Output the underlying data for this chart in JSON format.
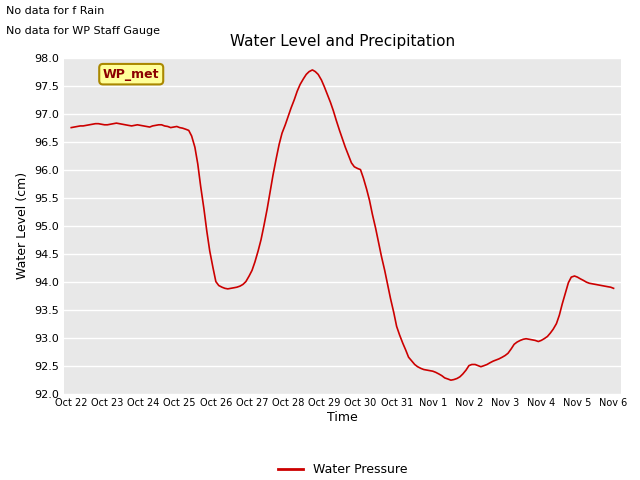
{
  "title": "Water Level and Precipitation",
  "ylabel": "Water Level (cm)",
  "xlabel": "Time",
  "ylim": [
    92.0,
    98.0
  ],
  "yticks": [
    92.0,
    92.5,
    93.0,
    93.5,
    94.0,
    94.5,
    95.0,
    95.5,
    96.0,
    96.5,
    97.0,
    97.5,
    98.0
  ],
  "xtick_labels": [
    "Oct 22",
    "Oct 23",
    "Oct 24",
    "Oct 25",
    "Oct 26",
    "Oct 27",
    "Oct 28",
    "Oct 29",
    "Oct 30",
    "Oct 31",
    "Nov 1",
    "Nov 2",
    "Nov 3",
    "Nov 4",
    "Nov 5",
    "Nov 6"
  ],
  "line_color": "#cc0000",
  "line_width": 1.2,
  "plot_bg_color": "#e8e8e8",
  "fig_bg_color": "#ffffff",
  "grid_color": "#ffffff",
  "legend_label": "Water Pressure",
  "note1": "No data for f Rain",
  "note2": "No data for WP Staff Gauge",
  "wp_met_label": "WP_met",
  "wp_met_bg": "#ffff99",
  "wp_met_border": "#aa8800",
  "x_days": [
    0.0,
    0.08,
    0.17,
    0.25,
    0.33,
    0.42,
    0.5,
    0.58,
    0.67,
    0.75,
    0.83,
    0.92,
    1.0,
    1.08,
    1.17,
    1.25,
    1.33,
    1.42,
    1.5,
    1.58,
    1.67,
    1.75,
    1.83,
    1.92,
    2.0,
    2.08,
    2.17,
    2.25,
    2.33,
    2.42,
    2.5,
    2.58,
    2.67,
    2.75,
    2.83,
    2.92,
    3.0,
    3.08,
    3.17,
    3.25,
    3.33,
    3.42,
    3.5,
    3.58,
    3.67,
    3.75,
    3.83,
    3.92,
    4.0,
    4.08,
    4.17,
    4.25,
    4.33,
    4.42,
    4.5,
    4.58,
    4.67,
    4.75,
    4.83,
    4.92,
    5.0,
    5.08,
    5.17,
    5.25,
    5.33,
    5.42,
    5.5,
    5.58,
    5.67,
    5.75,
    5.83,
    5.92,
    6.0,
    6.08,
    6.17,
    6.25,
    6.33,
    6.42,
    6.5,
    6.58,
    6.67,
    6.75,
    6.83,
    6.92,
    7.0,
    7.08,
    7.17,
    7.25,
    7.33,
    7.42,
    7.5,
    7.58,
    7.67,
    7.75,
    7.83,
    7.92,
    8.0,
    8.08,
    8.17,
    8.25,
    8.33,
    8.42,
    8.5,
    8.58,
    8.67,
    8.75,
    8.83,
    8.92,
    9.0,
    9.08,
    9.17,
    9.25,
    9.33,
    9.42,
    9.5,
    9.58,
    9.67,
    9.75,
    9.83,
    9.92,
    10.0,
    10.08,
    10.17,
    10.25,
    10.33,
    10.42,
    10.5,
    10.58,
    10.67,
    10.75,
    10.83,
    10.92,
    11.0,
    11.08,
    11.17,
    11.25,
    11.33,
    11.42,
    11.5,
    11.58,
    11.67,
    11.75,
    11.83,
    11.92,
    12.0,
    12.08,
    12.17,
    12.25,
    12.33,
    12.42,
    12.5,
    12.58,
    12.67,
    12.75,
    12.83,
    12.92,
    13.0,
    13.08,
    13.17,
    13.25,
    13.33,
    13.42,
    13.5,
    13.58,
    13.67,
    13.75,
    13.83,
    13.92,
    14.0,
    14.08,
    14.17,
    14.25,
    14.33,
    14.42,
    14.5,
    14.58,
    14.67,
    14.75,
    14.83,
    14.92,
    15.0
  ],
  "y_vals": [
    96.75,
    96.76,
    96.77,
    96.78,
    96.78,
    96.79,
    96.8,
    96.81,
    96.82,
    96.82,
    96.81,
    96.8,
    96.8,
    96.81,
    96.82,
    96.83,
    96.82,
    96.81,
    96.8,
    96.79,
    96.78,
    96.79,
    96.8,
    96.79,
    96.78,
    96.77,
    96.76,
    96.78,
    96.79,
    96.8,
    96.8,
    96.78,
    96.77,
    96.75,
    96.76,
    96.77,
    96.75,
    96.74,
    96.72,
    96.7,
    96.6,
    96.4,
    96.1,
    95.7,
    95.3,
    94.9,
    94.55,
    94.25,
    94.0,
    93.93,
    93.9,
    93.88,
    93.87,
    93.88,
    93.89,
    93.9,
    93.92,
    93.95,
    94.0,
    94.1,
    94.2,
    94.35,
    94.55,
    94.75,
    95.0,
    95.3,
    95.6,
    95.9,
    96.2,
    96.45,
    96.65,
    96.8,
    96.95,
    97.1,
    97.25,
    97.4,
    97.52,
    97.62,
    97.7,
    97.75,
    97.78,
    97.75,
    97.7,
    97.6,
    97.48,
    97.35,
    97.2,
    97.05,
    96.88,
    96.7,
    96.55,
    96.4,
    96.25,
    96.12,
    96.05,
    96.02,
    96.0,
    95.85,
    95.65,
    95.45,
    95.2,
    94.95,
    94.7,
    94.45,
    94.2,
    93.95,
    93.7,
    93.45,
    93.2,
    93.05,
    92.9,
    92.78,
    92.65,
    92.58,
    92.52,
    92.48,
    92.45,
    92.43,
    92.42,
    92.41,
    92.4,
    92.38,
    92.35,
    92.32,
    92.28,
    92.26,
    92.24,
    92.25,
    92.27,
    92.3,
    92.35,
    92.42,
    92.5,
    92.52,
    92.52,
    92.5,
    92.48,
    92.5,
    92.52,
    92.55,
    92.58,
    92.6,
    92.62,
    92.65,
    92.68,
    92.72,
    92.8,
    92.88,
    92.92,
    92.95,
    92.97,
    92.98,
    92.97,
    92.96,
    92.95,
    92.93,
    92.95,
    92.98,
    93.02,
    93.08,
    93.15,
    93.25,
    93.4,
    93.6,
    93.8,
    93.98,
    94.08,
    94.1,
    94.08,
    94.05,
    94.02,
    93.99,
    93.97,
    93.96,
    93.95,
    93.94,
    93.93,
    93.92,
    93.91,
    93.9,
    93.88
  ]
}
